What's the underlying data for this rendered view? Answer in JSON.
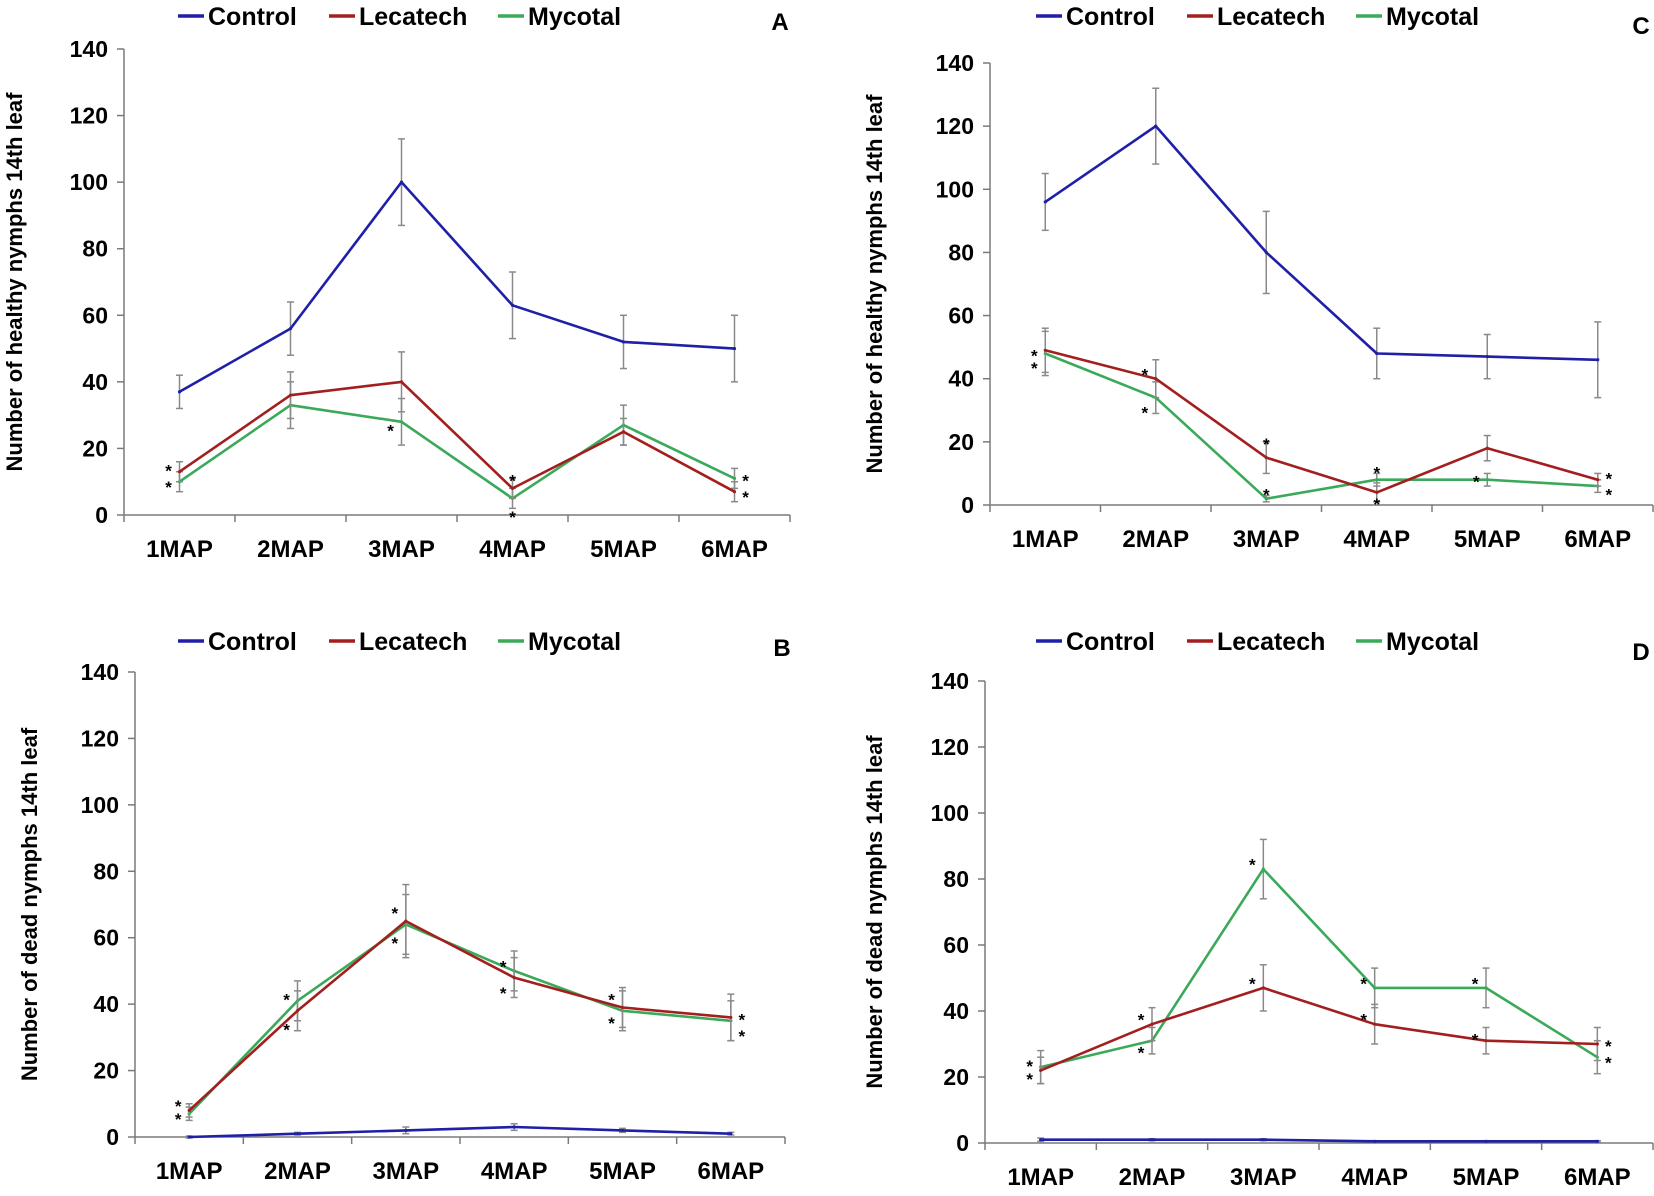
{
  "colors": {
    "Control": "#1f1fa8",
    "Lecatech": "#a31f1f",
    "Mycotal": "#3aaa5a",
    "error_bar": "#8a8a8a"
  },
  "chart_data": [
    {
      "panel": "A",
      "type": "line",
      "ylabel": "Number of healthy nymphs 14th leaf",
      "xlabel": "",
      "ylim": [
        0,
        140
      ],
      "yticks": [
        0,
        20,
        40,
        60,
        80,
        100,
        120,
        140
      ],
      "categories": [
        "1MAP",
        "2MAP",
        "3MAP",
        "4MAP",
        "5MAP",
        "6MAP"
      ],
      "legend": [
        "Control",
        "Lecatech",
        "Mycotal"
      ],
      "series": [
        {
          "name": "Control",
          "values": [
            37,
            56,
            100,
            63,
            52,
            50
          ],
          "errors": [
            5,
            8,
            13,
            10,
            8,
            10
          ]
        },
        {
          "name": "Lecatech",
          "values": [
            13,
            36,
            40,
            8,
            25,
            7
          ],
          "errors": [
            3,
            7,
            9,
            3,
            4,
            3
          ]
        },
        {
          "name": "Mycotal",
          "values": [
            10,
            33,
            28,
            5,
            27,
            11
          ],
          "errors": [
            3,
            7,
            7,
            3,
            6,
            3
          ]
        }
      ],
      "stars": [
        {
          "category": "1MAP",
          "value": 14,
          "side": "left"
        },
        {
          "category": "1MAP",
          "value": 9,
          "side": "left"
        },
        {
          "category": "3MAP",
          "value": 26,
          "side": "left"
        },
        {
          "category": "4MAP",
          "value": 11,
          "side": "center"
        },
        {
          "category": "4MAP",
          "value": 0,
          "side": "center"
        },
        {
          "category": "6MAP",
          "value": 11,
          "side": "right"
        },
        {
          "category": "6MAP",
          "value": 6,
          "side": "right"
        }
      ]
    },
    {
      "panel": "C",
      "type": "line",
      "ylabel": "Number of healthy nymphs 14th leaf",
      "xlabel": "",
      "ylim": [
        0,
        140
      ],
      "yticks": [
        0,
        20,
        40,
        60,
        80,
        100,
        120,
        140
      ],
      "categories": [
        "1MAP",
        "2MAP",
        "3MAP",
        "4MAP",
        "5MAP",
        "6MAP"
      ],
      "legend": [
        "Control",
        "Lecatech",
        "Mycotal"
      ],
      "series": [
        {
          "name": "Control",
          "values": [
            96,
            120,
            80,
            48,
            47,
            46
          ],
          "errors": [
            9,
            12,
            13,
            8,
            7,
            12
          ]
        },
        {
          "name": "Lecatech",
          "values": [
            49,
            40,
            15,
            4,
            18,
            8
          ],
          "errors": [
            7,
            6,
            5,
            3,
            4,
            2
          ]
        },
        {
          "name": "Mycotal",
          "values": [
            48,
            34,
            2,
            8,
            8,
            6
          ],
          "errors": [
            7,
            5,
            1,
            2,
            2,
            2
          ]
        }
      ],
      "stars": [
        {
          "category": "1MAP",
          "value": 48,
          "side": "left"
        },
        {
          "category": "1MAP",
          "value": 44,
          "side": "left"
        },
        {
          "category": "2MAP",
          "value": 42,
          "side": "left"
        },
        {
          "category": "2MAP",
          "value": 30,
          "side": "left"
        },
        {
          "category": "3MAP",
          "value": 20,
          "side": "center"
        },
        {
          "category": "3MAP",
          "value": 4,
          "side": "center"
        },
        {
          "category": "4MAP",
          "value": 11,
          "side": "center"
        },
        {
          "category": "4MAP",
          "value": 1,
          "side": "center"
        },
        {
          "category": "5MAP",
          "value": 8,
          "side": "left"
        },
        {
          "category": "6MAP",
          "value": 9,
          "side": "right"
        },
        {
          "category": "6MAP",
          "value": 4,
          "side": "right"
        }
      ]
    },
    {
      "panel": "B",
      "type": "line",
      "ylabel": "Number of dead nymphs 14th leaf",
      "xlabel": "",
      "ylim": [
        0,
        140
      ],
      "yticks": [
        0,
        20,
        40,
        60,
        80,
        100,
        120,
        140
      ],
      "categories": [
        "1MAP",
        "2MAP",
        "3MAP",
        "4MAP",
        "5MAP",
        "6MAP"
      ],
      "legend": [
        "Control",
        "Lecatech",
        "Mycotal"
      ],
      "series": [
        {
          "name": "Control",
          "values": [
            0,
            1,
            2,
            3,
            2,
            1
          ],
          "errors": [
            0.3,
            0.4,
            1,
            1,
            0.6,
            0.4
          ]
        },
        {
          "name": "Lecatech",
          "values": [
            8,
            38,
            65,
            48,
            39,
            36
          ],
          "errors": [
            2,
            6,
            11,
            6,
            6,
            7
          ]
        },
        {
          "name": "Mycotal",
          "values": [
            7,
            41,
            64,
            50,
            38,
            35
          ],
          "errors": [
            2,
            6,
            9,
            6,
            6,
            6
          ]
        }
      ],
      "stars": [
        {
          "category": "1MAP",
          "value": 10,
          "side": "left"
        },
        {
          "category": "1MAP",
          "value": 6,
          "side": "left"
        },
        {
          "category": "2MAP",
          "value": 42,
          "side": "left"
        },
        {
          "category": "2MAP",
          "value": 33,
          "side": "left"
        },
        {
          "category": "3MAP",
          "value": 68,
          "side": "left"
        },
        {
          "category": "3MAP",
          "value": 59,
          "side": "left"
        },
        {
          "category": "4MAP",
          "value": 52,
          "side": "left"
        },
        {
          "category": "4MAP",
          "value": 44,
          "side": "left"
        },
        {
          "category": "5MAP",
          "value": 42,
          "side": "left"
        },
        {
          "category": "5MAP",
          "value": 35,
          "side": "left"
        },
        {
          "category": "6MAP",
          "value": 36,
          "side": "right"
        },
        {
          "category": "6MAP",
          "value": 31,
          "side": "right"
        }
      ]
    },
    {
      "panel": "D",
      "type": "line",
      "ylabel": "Number of dead nymphs 14th leaf",
      "xlabel": "",
      "ylim": [
        0,
        140
      ],
      "yticks": [
        0,
        20,
        40,
        60,
        80,
        100,
        120,
        140
      ],
      "categories": [
        "1MAP",
        "2MAP",
        "3MAP",
        "4MAP",
        "5MAP",
        "6MAP"
      ],
      "legend": [
        "Control",
        "Lecatech",
        "Mycotal"
      ],
      "series": [
        {
          "name": "Control",
          "values": [
            1,
            1,
            1,
            0.5,
            0.5,
            0.5
          ],
          "errors": [
            0.5,
            0.3,
            0.3,
            0.2,
            0.2,
            0.2
          ]
        },
        {
          "name": "Lecatech",
          "values": [
            22,
            36,
            47,
            36,
            31,
            30
          ],
          "errors": [
            4,
            5,
            7,
            6,
            4,
            5
          ]
        },
        {
          "name": "Mycotal",
          "values": [
            23,
            31,
            83,
            47,
            47,
            26
          ],
          "errors": [
            5,
            4,
            9,
            6,
            6,
            5
          ]
        }
      ],
      "stars": [
        {
          "category": "1MAP",
          "value": 24,
          "side": "left"
        },
        {
          "category": "1MAP",
          "value": 20,
          "side": "left"
        },
        {
          "category": "2MAP",
          "value": 38,
          "side": "left"
        },
        {
          "category": "2MAP",
          "value": 28,
          "side": "left"
        },
        {
          "category": "3MAP",
          "value": 85,
          "side": "left"
        },
        {
          "category": "3MAP",
          "value": 49,
          "side": "left"
        },
        {
          "category": "4MAP",
          "value": 49,
          "side": "left"
        },
        {
          "category": "4MAP",
          "value": 38,
          "side": "left"
        },
        {
          "category": "5MAP",
          "value": 49,
          "side": "left"
        },
        {
          "category": "5MAP",
          "value": 32,
          "side": "left"
        },
        {
          "category": "6MAP",
          "value": 30,
          "side": "right"
        },
        {
          "category": "6MAP",
          "value": 25,
          "side": "right"
        }
      ]
    }
  ]
}
